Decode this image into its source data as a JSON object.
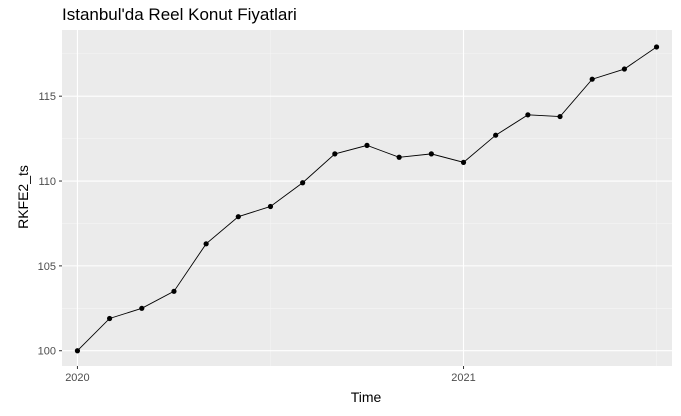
{
  "chart_data": {
    "type": "line",
    "title": "Istanbul'da Reel Konut Fiyatlari",
    "xlabel": "Time",
    "ylabel": "RKFE2_ts",
    "x_ticks": [
      2020,
      2021
    ],
    "y_ticks": [
      100,
      105,
      110,
      115
    ],
    "xlim": [
      2019.96,
      2021.54
    ],
    "ylim": [
      99.1,
      118.9
    ],
    "grid": true,
    "legend": "none",
    "series": [
      {
        "x": [
          2020.0,
          2020.0833,
          2020.1667,
          2020.25,
          2020.3333,
          2020.4167,
          2020.5,
          2020.5833,
          2020.6667,
          2020.75,
          2020.8333,
          2020.9167,
          2021.0,
          2021.0833,
          2021.1667,
          2021.25,
          2021.3333,
          2021.4167,
          2021.5
        ],
        "values": [
          100.0,
          101.9,
          102.5,
          103.5,
          106.3,
          107.9,
          108.5,
          109.9,
          111.6,
          112.1,
          111.4,
          111.6,
          111.1,
          112.7,
          113.9,
          113.8,
          116.0,
          116.6,
          117.9
        ]
      }
    ],
    "colors": {
      "panel": "#ebebeb",
      "grid_major": "#ffffff",
      "grid_minor": "#f5f5f5",
      "line": "#000000",
      "point": "#000000",
      "tick": "#333333"
    }
  }
}
